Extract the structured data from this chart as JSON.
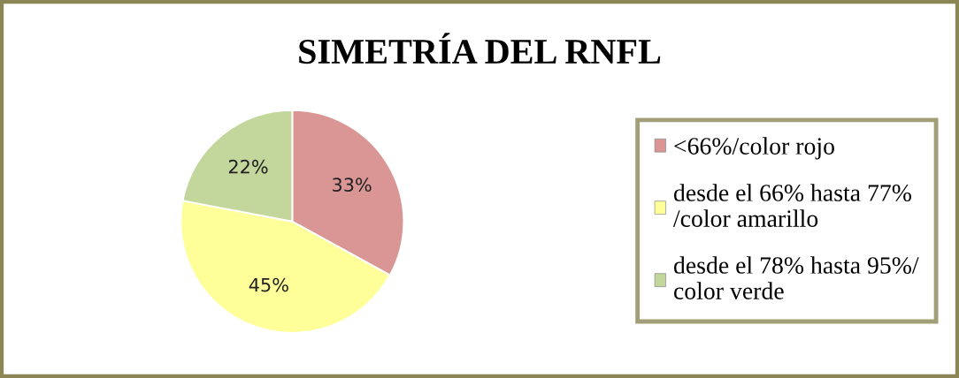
{
  "chart_data": {
    "type": "pie",
    "title": "SIMETRÍA DEL RNFL",
    "categories": [
      "<66%/color rojo",
      "desde el 66% hasta 77% /color amarillo",
      "desde el 78% hasta 95%/ color verde"
    ],
    "values": [
      33,
      45,
      22
    ],
    "colors": [
      "#d99694",
      "#ffff99",
      "#c3d69b"
    ],
    "value_labels": [
      "33%",
      "45%",
      "22%"
    ],
    "legend": "right"
  }
}
